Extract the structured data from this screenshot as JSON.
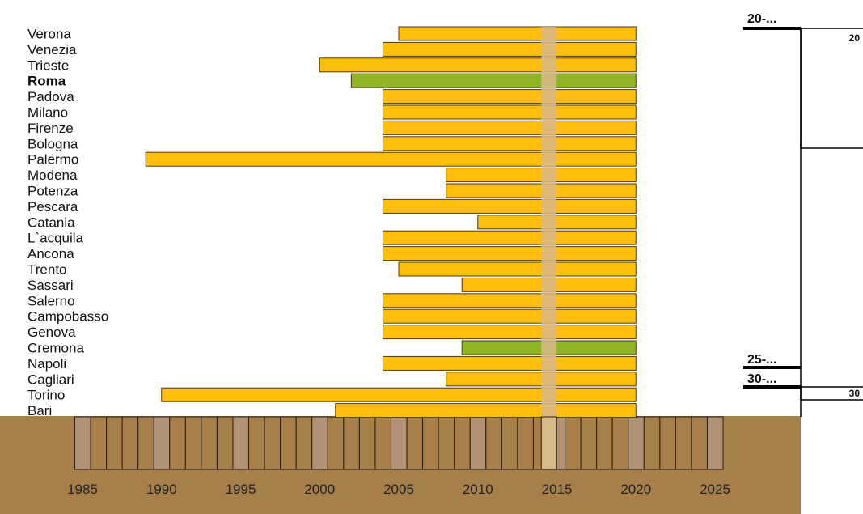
{
  "chart_data": {
    "type": "bar",
    "orientation": "horizontal",
    "bar_kind": "range",
    "categories": [
      "Verona",
      "Venezia",
      "Trieste",
      "Roma",
      "Padova",
      "Milano",
      "Firenze",
      "Bologna",
      "Palermo",
      "Modena",
      "Potenza",
      "Pescara",
      "Catania",
      "L`acquila",
      "Ancona",
      "Trento",
      "Sassari",
      "Salerno",
      "Campobasso",
      "Genova",
      "Cremona",
      "Napoli",
      "Cagliari",
      "Torino",
      "Bari"
    ],
    "bold_categories": [
      "Roma"
    ],
    "bars": [
      {
        "start": 2005,
        "end": 2020,
        "highlight": false
      },
      {
        "start": 2004,
        "end": 2020,
        "highlight": false
      },
      {
        "start": 2000,
        "end": 2020,
        "highlight": false
      },
      {
        "start": 2002,
        "end": 2020,
        "highlight": true
      },
      {
        "start": 2004,
        "end": 2020,
        "highlight": false
      },
      {
        "start": 2004,
        "end": 2020,
        "highlight": false
      },
      {
        "start": 2004,
        "end": 2020,
        "highlight": false
      },
      {
        "start": 2004,
        "end": 2020,
        "highlight": false
      },
      {
        "start": 1989,
        "end": 2020,
        "highlight": false
      },
      {
        "start": 2008,
        "end": 2020,
        "highlight": false
      },
      {
        "start": 2008,
        "end": 2020,
        "highlight": false
      },
      {
        "start": 2004,
        "end": 2020,
        "highlight": false
      },
      {
        "start": 2010,
        "end": 2020,
        "highlight": false
      },
      {
        "start": 2004,
        "end": 2020,
        "highlight": false
      },
      {
        "start": 2004,
        "end": 2020,
        "highlight": false
      },
      {
        "start": 2005,
        "end": 2020,
        "highlight": false
      },
      {
        "start": 2009,
        "end": 2020,
        "highlight": false
      },
      {
        "start": 2004,
        "end": 2020,
        "highlight": false
      },
      {
        "start": 2004,
        "end": 2020,
        "highlight": false
      },
      {
        "start": 2004,
        "end": 2020,
        "highlight": false
      },
      {
        "start": 2009,
        "end": 2020,
        "highlight": true
      },
      {
        "start": 2004,
        "end": 2020,
        "highlight": false
      },
      {
        "start": 2008,
        "end": 2020,
        "highlight": false
      },
      {
        "start": 1990,
        "end": 2020,
        "highlight": false
      },
      {
        "start": 2001,
        "end": 2020,
        "highlight": false
      }
    ],
    "x_ticks": [
      1985,
      1990,
      1995,
      2000,
      2005,
      2010,
      2015,
      2020,
      2025
    ],
    "xlim": [
      1984,
      2025
    ],
    "marker_year": 2014.5,
    "colors": {
      "bar": "#FFBE0B",
      "bar_highlight": "#8FB424",
      "bar_border": "#4a3a1a",
      "marker": "#D8B98A",
      "ground": "#A67F4B",
      "ground_block": "#B09377"
    },
    "side_labels": [
      "20-...",
      "25-...",
      "30-..."
    ],
    "box_labels": [
      "20",
      "30"
    ]
  }
}
